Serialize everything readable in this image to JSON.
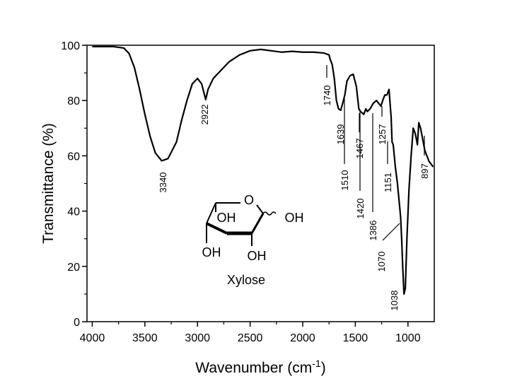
{
  "chart_data": {
    "type": "line",
    "xlabel": {
      "text": "Wavenumber (cm",
      "sup": "-1",
      "after": ")"
    },
    "ylabel": "Transmittance (%)",
    "xlim": [
      4050,
      750
    ],
    "ylim": [
      0,
      100
    ],
    "xticks": [
      4000,
      3500,
      3000,
      2500,
      2000,
      1500,
      1000
    ],
    "yticks": [
      0,
      20,
      40,
      60,
      80,
      100
    ],
    "color": "#000000",
    "x": [
      4000,
      3800,
      3700,
      3650,
      3600,
      3550,
      3500,
      3450,
      3400,
      3340,
      3280,
      3200,
      3150,
      3100,
      3050,
      3000,
      2960,
      2922,
      2900,
      2850,
      2800,
      2750,
      2700,
      2600,
      2500,
      2400,
      2300,
      2200,
      2100,
      2000,
      1900,
      1800,
      1750,
      1740,
      1720,
      1700,
      1680,
      1660,
      1639,
      1620,
      1600,
      1580,
      1550,
      1520,
      1510,
      1490,
      1467,
      1450,
      1420,
      1400,
      1386,
      1360,
      1330,
      1300,
      1257,
      1240,
      1220,
      1200,
      1180,
      1160,
      1151,
      1140,
      1120,
      1100,
      1080,
      1070,
      1060,
      1050,
      1038,
      1025,
      1010,
      990,
      970,
      950,
      930,
      910,
      897,
      880,
      860,
      840,
      820,
      800,
      760
    ],
    "values": [
      99.5,
      99.5,
      99,
      97,
      92,
      84,
      75,
      67,
      61,
      58.2,
      59,
      65,
      73,
      80,
      86,
      88,
      86,
      80.3,
      84,
      88,
      90,
      92,
      94,
      96.5,
      98,
      98.5,
      98,
      97.5,
      97.8,
      97.5,
      97.5,
      97.2,
      96.5,
      95,
      93,
      88,
      80,
      77,
      76.5,
      79,
      82,
      87,
      89,
      89.5,
      88,
      85,
      77,
      76,
      75,
      77,
      76,
      77,
      79,
      80,
      78,
      80,
      82,
      82,
      84,
      74,
      65,
      64,
      56,
      50,
      42,
      38,
      30,
      20,
      10,
      12,
      30,
      48,
      60,
      70,
      68,
      64,
      72,
      70,
      66,
      62,
      60,
      58,
      56
    ],
    "annotations": [
      "3340",
      "2922",
      "1740",
      "1639",
      "1510",
      "1467",
      "1420",
      "1386",
      "1257",
      "1151",
      "1070",
      "1038",
      "897"
    ],
    "inset": {
      "ring_o": "O",
      "oh_c4": "OH",
      "oh_c1": "OH",
      "oh_c3": "OH",
      "oh_c2": "OH",
      "name": "Xylose"
    }
  }
}
